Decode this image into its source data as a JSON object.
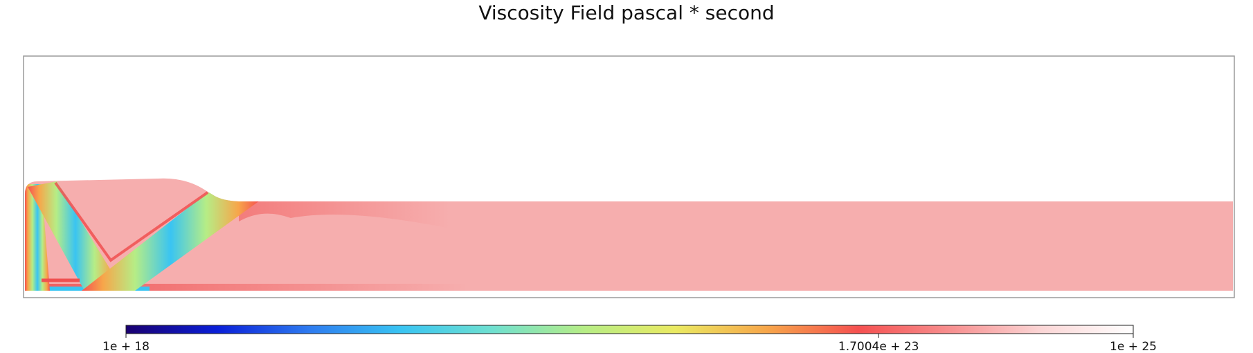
{
  "title": "Viscosity Field pascal * second",
  "chart_data": {
    "type": "heatmap",
    "title": "Viscosity Field pascal * second",
    "colorbar": {
      "scale": "log",
      "min": 1e+18,
      "max": 1e+25,
      "tick_values": [
        1e+18,
        1.7004e+23,
        1e+25
      ],
      "tick_labels": [
        "1e + 18",
        "1.7004e + 23",
        "1e + 25"
      ],
      "colormap": [
        "#1a0070",
        "#0a1fd8",
        "#2e7bf0",
        "#39c4f2",
        "#6fe0d0",
        "#b6ed86",
        "#eaea62",
        "#f7a64a",
        "#f55050",
        "#f78f8f",
        "#fbd6d6",
        "#ffffff"
      ]
    },
    "field": {
      "dominant_value": 1e+25,
      "dominant_color": "#f6aeae",
      "features": [
        "high-viscosity plate",
        "low-viscosity shear bands",
        "red high-strain boundaries"
      ]
    },
    "grid": false,
    "axes_visible": false
  }
}
